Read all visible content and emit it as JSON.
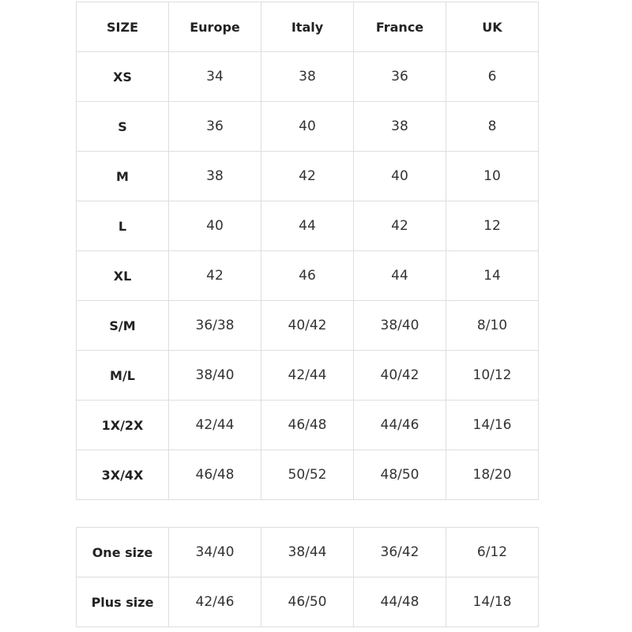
{
  "size_table": {
    "header": [
      "SIZE",
      "Europe",
      "Italy",
      "France",
      "UK"
    ],
    "rows": [
      [
        "XS",
        34,
        38,
        36,
        6
      ],
      [
        "S",
        36,
        40,
        38,
        8
      ],
      [
        "M",
        38,
        42,
        40,
        10
      ],
      [
        "L",
        40,
        44,
        42,
        12
      ],
      [
        "XL",
        42,
        46,
        44,
        14
      ],
      [
        "S/M",
        "36/38",
        "40/42",
        "38/40",
        "8/10"
      ],
      [
        "M/L",
        "38/40",
        "42/44",
        "40/42",
        "10/12"
      ],
      [
        "1X/2X",
        "42/44",
        "46/48",
        "44/46",
        "14/16"
      ],
      [
        "3X/4X",
        "46/48",
        "50/52",
        "48/50",
        "18/20"
      ]
    ]
  },
  "extra_table": {
    "rows": [
      [
        "One size",
        "34/40",
        "38/44",
        "36/42",
        "6/12"
      ],
      [
        "Plus size",
        "42/46",
        "46/50",
        "44/48",
        "14/18"
      ]
    ]
  }
}
